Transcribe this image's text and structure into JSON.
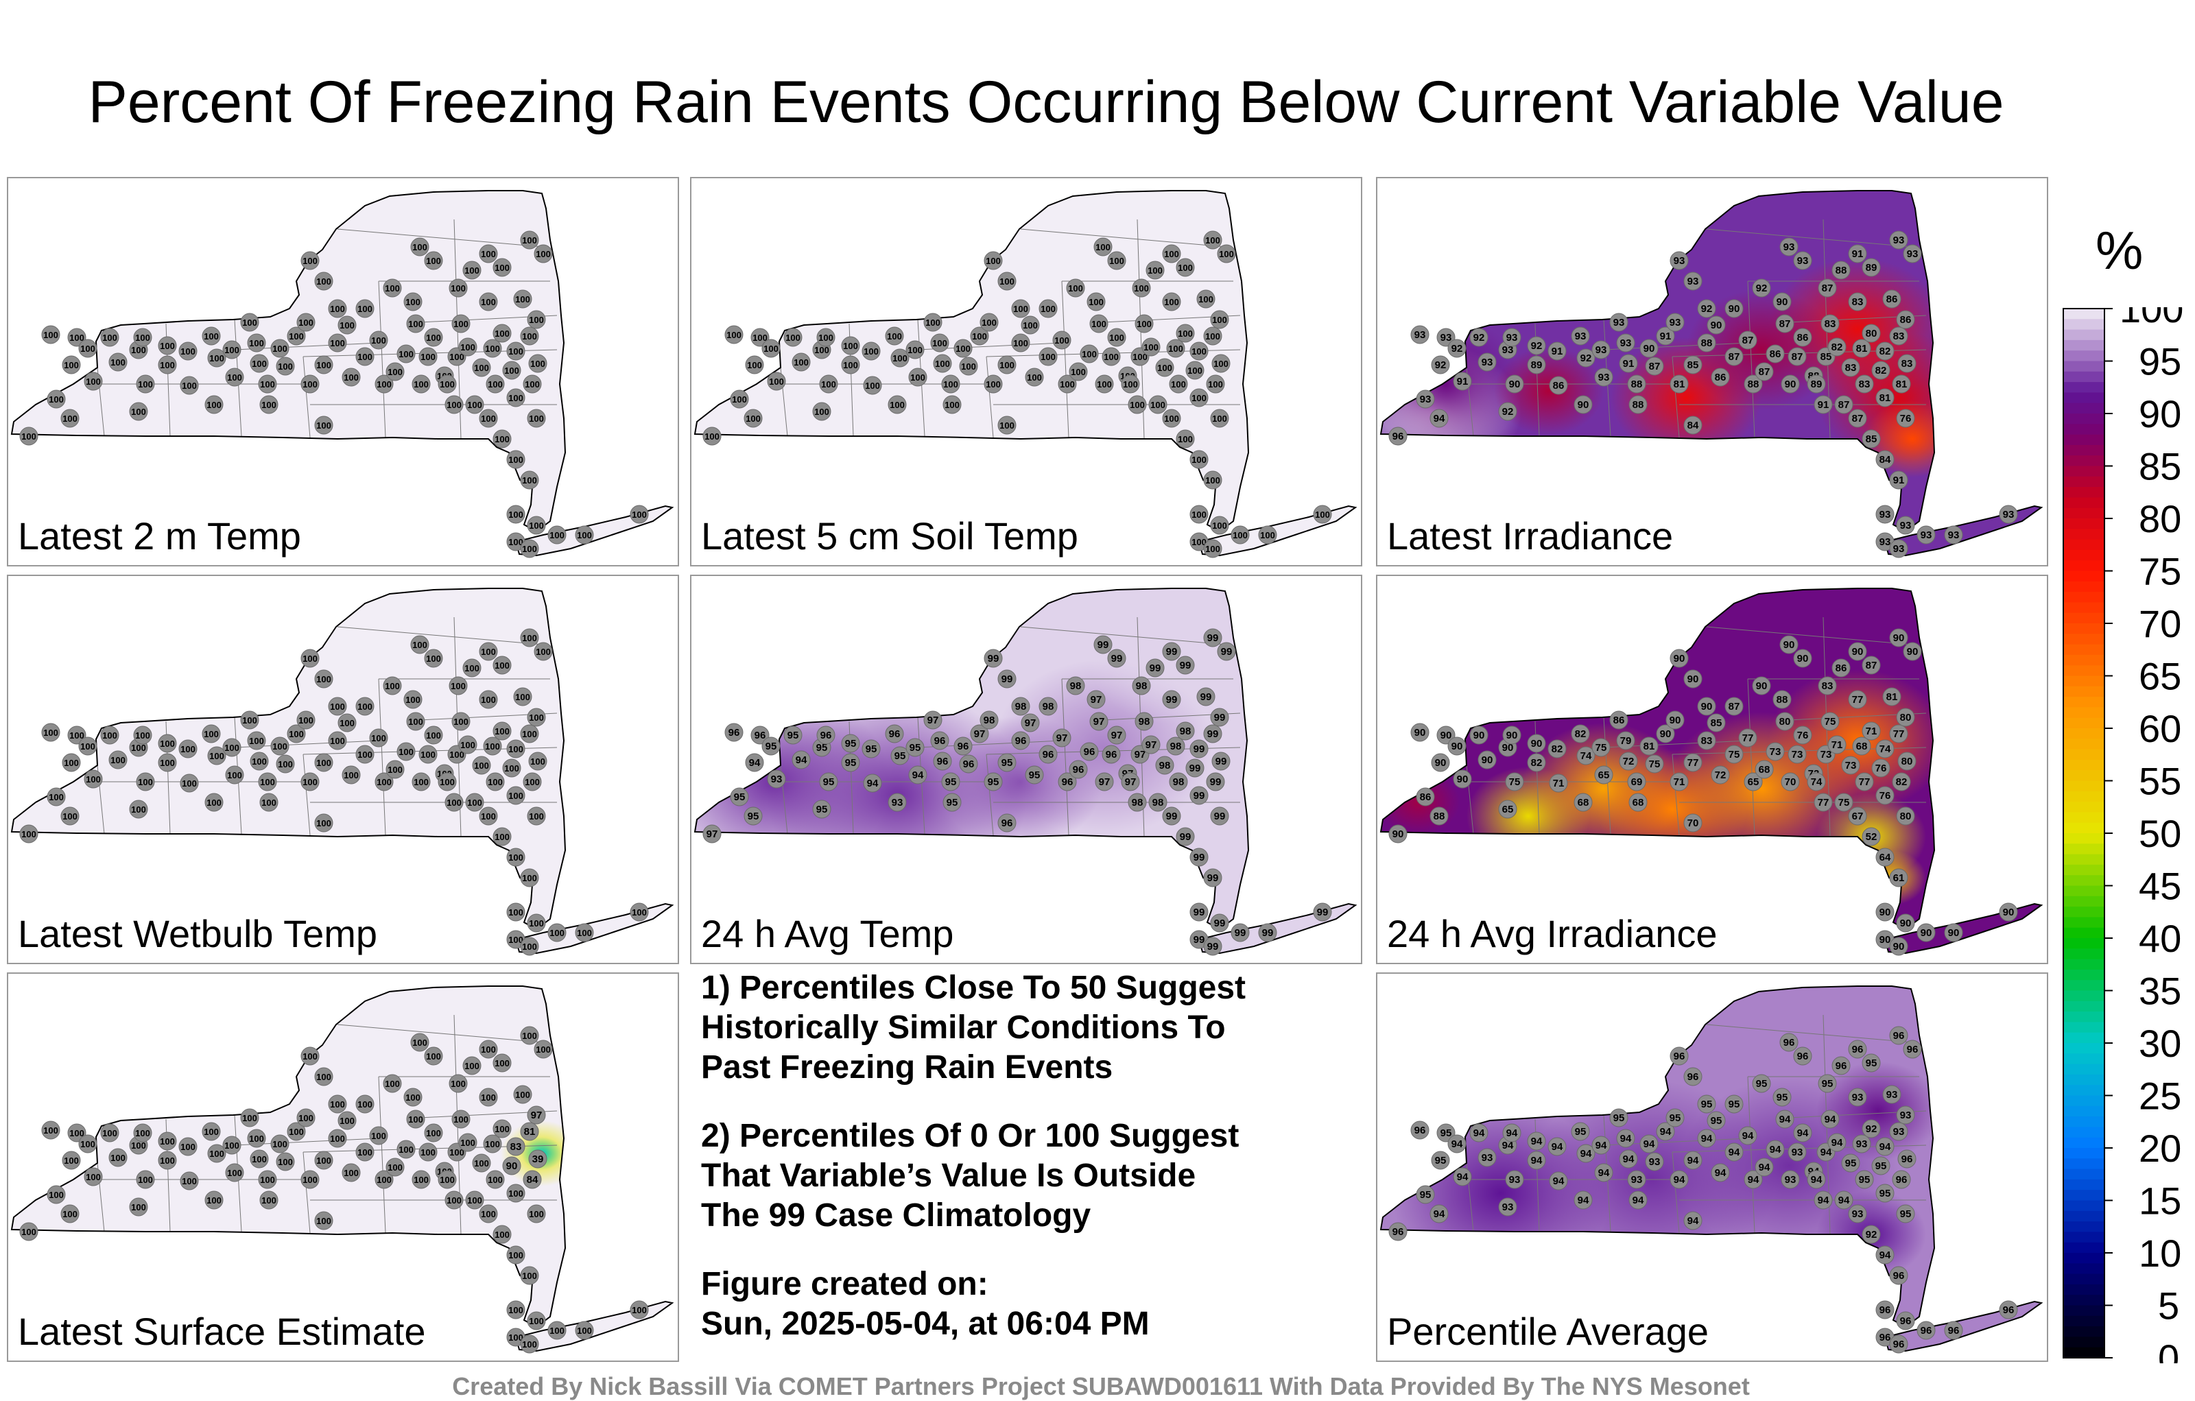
{
  "title": "Percent Of Freezing Rain Events Occurring Below Current Variable Value",
  "panels": [
    {
      "label": "Latest 2 m Temp",
      "pattern": "uniform100"
    },
    {
      "label": "Latest 5 cm Soil Temp",
      "pattern": "uniform100"
    },
    {
      "label": "Latest Irradiance",
      "pattern": "irradiance"
    },
    {
      "label": "Latest Wetbulb Temp",
      "pattern": "uniform100"
    },
    {
      "label": "24 h Avg Temp",
      "pattern": "avgtemp"
    },
    {
      "label": "24 h Avg Irradiance",
      "pattern": "avgirr"
    },
    {
      "label": "Latest Surface Estimate",
      "pattern": "surface"
    },
    {
      "label": "Percentile Average",
      "pattern": "average"
    }
  ],
  "notes": {
    "note1_l1": "1) Percentiles Close To 50 Suggest",
    "note1_l2": "Historically Similar Conditions To",
    "note1_l3": "Past Freezing Rain Events",
    "note2_l1": "2) Percentiles Of 0 Or 100 Suggest",
    "note2_l2": "That Variable’s Value Is Outside",
    "note2_l3": "The 99 Case Climatology",
    "created_l1": "Figure created on:",
    "created_l2": "Sun, 2025-05-04, at 06:04 PM"
  },
  "footer": "Created By Nick Bassill Via COMET Partners Project SUBAWD001611 With Data Provided By The NYS Mesonet",
  "colorbar": {
    "unit": "%",
    "ticks": [
      "100",
      "95",
      "90",
      "85",
      "80",
      "75",
      "70",
      "65",
      "60",
      "55",
      "50",
      "45",
      "40",
      "35",
      "30",
      "25",
      "20",
      "15",
      "10",
      "5",
      "0"
    ],
    "range": [
      0,
      100
    ]
  }
}
